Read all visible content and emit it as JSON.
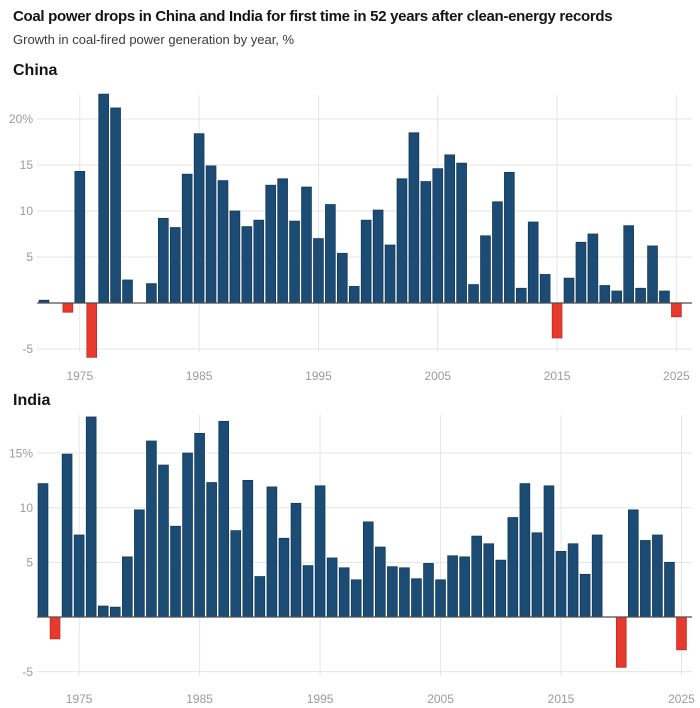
{
  "header": {
    "title": "Coal power drops in China and India for first time in 52 years after clean-energy records",
    "subtitle": "Growth in coal-fired power generation by year, %"
  },
  "colors": {
    "bar_positive": "#1c4c74",
    "bar_positive_stroke": "#10395c",
    "bar_negative": "#e53a2d",
    "bar_negative_stroke": "#c22b1f",
    "gridline": "#e5e5e5",
    "zero_axis": "#4d4d4d",
    "tick_label": "#9b9b9b",
    "heading_text": "#141414"
  },
  "chart_data": [
    {
      "type": "bar",
      "title": "China",
      "xlabel": "",
      "ylabel": "Growth in coal-fired power generation by year, %",
      "grid": true,
      "legend": "none",
      "ylim": [
        -7,
        23.5
      ],
      "xlim": [
        1971.5,
        2025.5
      ],
      "x": [
        1972,
        1973,
        1974,
        1975,
        1976,
        1977,
        1978,
        1979,
        1980,
        1981,
        1982,
        1983,
        1984,
        1985,
        1986,
        1987,
        1988,
        1989,
        1990,
        1991,
        1992,
        1993,
        1994,
        1995,
        1996,
        1997,
        1998,
        1999,
        2000,
        2001,
        2002,
        2003,
        2004,
        2005,
        2006,
        2007,
        2008,
        2009,
        2010,
        2011,
        2012,
        2013,
        2014,
        2015,
        2016,
        2017,
        2018,
        2019,
        2020,
        2021,
        2022,
        2023,
        2024,
        2025
      ],
      "values": [
        0.3,
        0,
        -1.0,
        14.3,
        -5.9,
        22.7,
        21.2,
        2.5,
        0,
        2.1,
        9.2,
        8.2,
        14.0,
        18.4,
        14.9,
        13.3,
        10.0,
        8.3,
        9.0,
        12.8,
        13.5,
        8.9,
        12.6,
        7.0,
        10.7,
        5.4,
        1.8,
        9.0,
        10.1,
        6.3,
        13.5,
        18.5,
        13.2,
        14.6,
        16.1,
        15.2,
        2.0,
        7.3,
        11.0,
        14.2,
        1.6,
        8.8,
        3.1,
        -3.8,
        2.7,
        6.6,
        7.5,
        1.9,
        1.3,
        8.4,
        1.6,
        6.2,
        1.3,
        -1.5
      ],
      "yticks": [
        {
          "v": 20,
          "label": "20%"
        },
        {
          "v": 15,
          "label": "15"
        },
        {
          "v": 10,
          "label": "10"
        },
        {
          "v": 5,
          "label": "5"
        },
        {
          "v": -5,
          "label": "-5"
        }
      ],
      "xticks": [
        {
          "v": 1975,
          "label": "1975"
        },
        {
          "v": 1985,
          "label": "1985"
        },
        {
          "v": 1995,
          "label": "1995"
        },
        {
          "v": 2005,
          "label": "2005"
        },
        {
          "v": 2015,
          "label": "2015"
        },
        {
          "v": 2025,
          "label": "2025"
        }
      ]
    },
    {
      "type": "bar",
      "title": "India",
      "xlabel": "",
      "ylabel": "Growth in coal-fired power generation by year, %",
      "grid": true,
      "legend": "none",
      "ylim": [
        -5.5,
        19
      ],
      "xlim": [
        1971.5,
        2025.5
      ],
      "x": [
        1972,
        1973,
        1974,
        1975,
        1976,
        1977,
        1978,
        1979,
        1980,
        1981,
        1982,
        1983,
        1984,
        1985,
        1986,
        1987,
        1988,
        1989,
        1990,
        1991,
        1992,
        1993,
        1994,
        1995,
        1996,
        1997,
        1998,
        1999,
        2000,
        2001,
        2002,
        2003,
        2004,
        2005,
        2006,
        2007,
        2008,
        2009,
        2010,
        2011,
        2012,
        2013,
        2014,
        2015,
        2016,
        2017,
        2018,
        2019,
        2020,
        2021,
        2022,
        2023,
        2024,
        2025
      ],
      "values": [
        12.2,
        -2.0,
        14.9,
        7.5,
        18.3,
        1.0,
        0.9,
        5.5,
        9.8,
        16.1,
        13.9,
        8.3,
        15.0,
        16.8,
        12.3,
        17.9,
        7.9,
        12.5,
        3.7,
        11.9,
        7.2,
        10.4,
        4.7,
        12.0,
        5.4,
        4.5,
        3.4,
        8.7,
        6.4,
        4.6,
        4.5,
        3.5,
        4.9,
        3.4,
        5.6,
        5.5,
        7.4,
        6.7,
        5.2,
        9.1,
        12.2,
        7.7,
        12.0,
        6.0,
        6.7,
        3.9,
        7.5,
        0,
        -4.6,
        9.8,
        7.0,
        7.5,
        5.0,
        -3.0
      ],
      "yticks": [
        {
          "v": 15,
          "label": "15%"
        },
        {
          "v": 10,
          "label": "10"
        },
        {
          "v": 5,
          "label": "5"
        },
        {
          "v": -5,
          "label": "-5"
        }
      ],
      "xticks": [
        {
          "v": 1975,
          "label": "1975"
        },
        {
          "v": 1985,
          "label": "1985"
        },
        {
          "v": 1995,
          "label": "1995"
        },
        {
          "v": 2005,
          "label": "2005"
        },
        {
          "v": 2015,
          "label": "2015"
        },
        {
          "v": 2025,
          "label": "2025"
        }
      ]
    }
  ]
}
